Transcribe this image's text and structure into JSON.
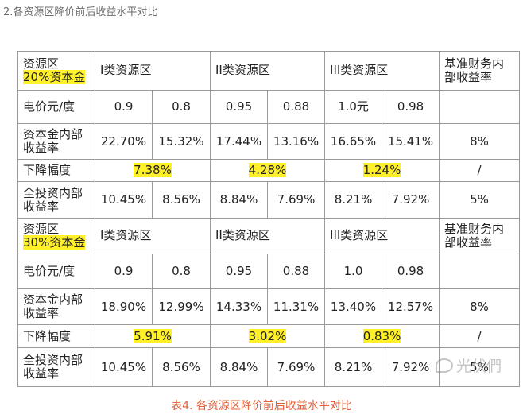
{
  "heading": "2.各资源区降价前后收益水平对比",
  "caption": "表4. 各资源区降价前后收益水平对比",
  "watermark": "光伏們",
  "colors": {
    "highlight": "#fff02a",
    "caption": "#e2603a",
    "border": "#9a9a9a"
  },
  "sections": [
    {
      "group_label": "资源区",
      "capital_label": "20%资本金",
      "zone_labels": [
        "I类资源区",
        "II类资源区",
        "III类资源区"
      ],
      "benchmark_label": "基准财务内部收益率",
      "price_label": "电价元/度",
      "price_values": [
        "0.9",
        "0.8",
        "0.95",
        "0.88",
        "1.0元",
        "0.98"
      ],
      "capital_irr_label": "资本金内部收益率",
      "capital_irr_values": [
        "22.70%",
        "15.32%",
        "17.44%",
        "13.16%",
        "16.65%",
        "15.41%"
      ],
      "capital_irr_benchmark": "8%",
      "drop_label": "下降幅度",
      "drop_values": [
        "7.38%",
        "4.28%",
        "1.24%"
      ],
      "drop_benchmark": "/",
      "total_irr_label": "全投资内部收益率",
      "total_irr_values": [
        "10.45%",
        "8.56%",
        "8.84%",
        "7.69%",
        "8.21%",
        "7.92%"
      ],
      "total_irr_benchmark": "5%"
    },
    {
      "group_label": "资源区",
      "capital_label": "30%资本金",
      "zone_labels": [
        "I类资源区",
        "II类资源区",
        "III类资源区"
      ],
      "benchmark_label": "基准财务内部收益率",
      "price_label": "电价元/度",
      "price_values": [
        "0.9",
        "0.8",
        "0.95",
        "0.88",
        "1.0",
        "0.98"
      ],
      "capital_irr_label": "资本金内部收益率",
      "capital_irr_values": [
        "18.90%",
        "12.99%",
        "14.33%",
        "11.31%",
        "13.40%",
        "12.57%"
      ],
      "capital_irr_benchmark": "8%",
      "drop_label": "下降幅度",
      "drop_values": [
        "5.91%",
        "3.02%",
        "0.83%"
      ],
      "drop_benchmark": "/",
      "total_irr_label": "全投资内部收益率",
      "total_irr_values": [
        "10.45%",
        "8.56%",
        "8.84%",
        "7.69%",
        "8.21%",
        "7.92%"
      ],
      "total_irr_benchmark": "5%"
    }
  ]
}
